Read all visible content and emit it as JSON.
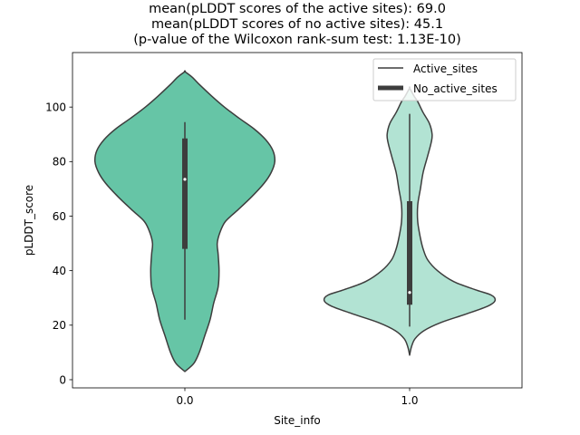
{
  "chart_data": {
    "type": "violin",
    "title_lines": [
      "mean(pLDDT scores of the active sites): 69.0",
      "mean(pLDDT scores of no active sites): 45.1",
      "(p-value of the Wilcoxon rank-sum test: 1.13E-10)"
    ],
    "xlabel": "Site_info",
    "ylabel": "pLDDT_score",
    "categories": [
      "0.0",
      "1.0"
    ],
    "ylim": [
      -3,
      120
    ],
    "yticks": [
      0,
      20,
      40,
      60,
      80,
      100
    ],
    "ytick_labels": [
      "0",
      "20",
      "40",
      "60",
      "80",
      "100"
    ],
    "grid": false,
    "legend_position": "upper right",
    "legend": [
      {
        "label": "Active_sites",
        "style": "thin"
      },
      {
        "label": "No_active_sites",
        "style": "thick"
      }
    ],
    "colors": {
      "active_fill": "#66c5a6",
      "inactive_fill": "#b2e3d3",
      "outline": "#3d3d3d",
      "box": "#3d3d3d",
      "median_dot": "#ffffff"
    },
    "violins": [
      {
        "category": "0.0",
        "name": "Active_sites",
        "color_key": "active_fill",
        "kde_range": [
          3,
          113
        ],
        "whisker": [
          22,
          94.5
        ],
        "quartiles": [
          48,
          88.5
        ],
        "median": 73.5,
        "density_profile": [
          [
            3,
            0.0
          ],
          [
            6,
            0.1
          ],
          [
            10,
            0.16
          ],
          [
            16,
            0.22
          ],
          [
            22,
            0.28
          ],
          [
            28,
            0.32
          ],
          [
            34,
            0.37
          ],
          [
            40,
            0.38
          ],
          [
            46,
            0.37
          ],
          [
            50,
            0.36
          ],
          [
            54,
            0.39
          ],
          [
            58,
            0.45
          ],
          [
            62,
            0.58
          ],
          [
            67,
            0.74
          ],
          [
            72,
            0.88
          ],
          [
            76,
            0.96
          ],
          [
            80,
            1.0
          ],
          [
            84,
            0.98
          ],
          [
            88,
            0.9
          ],
          [
            92,
            0.77
          ],
          [
            96,
            0.6
          ],
          [
            100,
            0.44
          ],
          [
            104,
            0.3
          ],
          [
            108,
            0.17
          ],
          [
            111,
            0.08
          ],
          [
            113,
            0.0
          ]
        ]
      },
      {
        "category": "1.0",
        "name": "No_active_sites",
        "color_key": "inactive_fill",
        "kde_range": [
          9,
          107
        ],
        "whisker": [
          19.5,
          97.5
        ],
        "quartiles": [
          27.5,
          65.5
        ],
        "median": 32,
        "density_profile": [
          [
            9,
            0.0
          ],
          [
            12,
            0.02
          ],
          [
            15,
            0.06
          ],
          [
            18,
            0.16
          ],
          [
            21,
            0.35
          ],
          [
            24,
            0.62
          ],
          [
            27,
            0.87
          ],
          [
            29,
            0.95
          ],
          [
            31,
            0.91
          ],
          [
            33,
            0.73
          ],
          [
            36,
            0.49
          ],
          [
            40,
            0.31
          ],
          [
            44,
            0.2
          ],
          [
            48,
            0.15
          ],
          [
            52,
            0.12
          ],
          [
            58,
            0.09
          ],
          [
            64,
            0.09
          ],
          [
            70,
            0.12
          ],
          [
            76,
            0.15
          ],
          [
            82,
            0.2
          ],
          [
            87,
            0.24
          ],
          [
            90,
            0.25
          ],
          [
            94,
            0.22
          ],
          [
            98,
            0.15
          ],
          [
            102,
            0.09
          ],
          [
            104,
            0.05
          ],
          [
            107,
            0.0
          ]
        ]
      }
    ]
  }
}
